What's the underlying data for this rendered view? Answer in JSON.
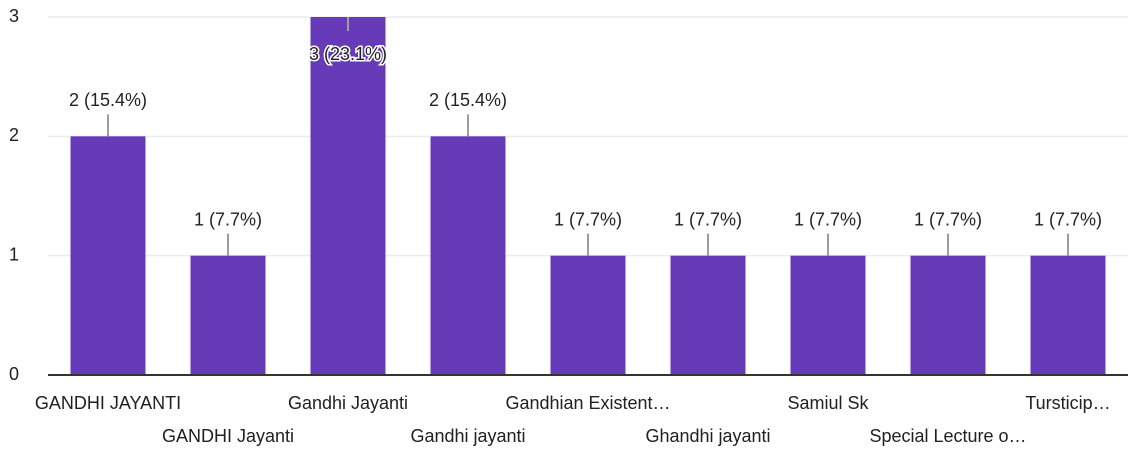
{
  "chart_data": {
    "type": "bar",
    "categories": [
      "GANDHI JAYANTI",
      "GANDHI Jayanti",
      "Gandhi Jayanti",
      "Gandhi jayanti",
      "Gandhian Existent…",
      "Ghandhi jayanti",
      "Samiul Sk",
      "Special Lecture o…",
      "Tursticip…"
    ],
    "values": [
      2,
      1,
      3,
      2,
      1,
      1,
      1,
      1,
      1
    ],
    "value_labels": [
      "2 (15.4%)",
      "1 (7.7%)",
      "3 (23.1%)",
      "2 (15.4%)",
      "1 (7.7%)",
      "1 (7.7%)",
      "1 (7.7%)",
      "1 (7.7%)",
      "1 (7.7%)"
    ],
    "color": "#673ab7",
    "ylim": [
      0,
      3
    ],
    "yticks": [
      0,
      1,
      2,
      3
    ],
    "grid": true
  }
}
